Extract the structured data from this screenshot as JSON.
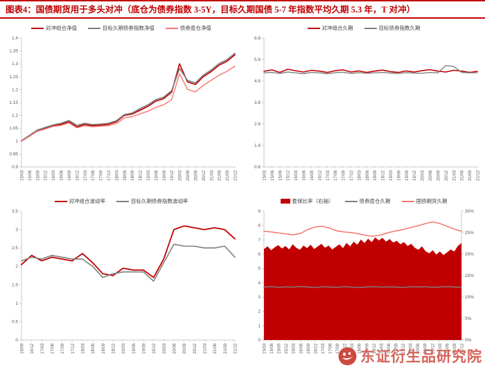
{
  "header": {
    "title": "图表4：国债期货用于多头对冲（底仓为债券指数 3-5Y，目标久期国债 5-7 年指数平均久期 5.3 年，T 对冲）",
    "accent_color": "#C00000"
  },
  "watermark": {
    "text": "东证衍生品研究院",
    "logo_color": "#CE4A3F"
  },
  "colors": {
    "main_red": "#C00000",
    "light_red": "#F4756F",
    "gray": "#7F7F7F",
    "axis": "#C9C9C9",
    "tick_text": "#595959"
  },
  "chart_data": [
    {
      "name": "net-value",
      "type": "line",
      "x_labels": [
        "15/03",
        "15/06",
        "15/09",
        "15/12",
        "16/03",
        "16/06",
        "16/09",
        "16/12",
        "17/03",
        "17/06",
        "17/09",
        "17/12",
        "18/03",
        "18/06",
        "18/09",
        "18/12",
        "19/03",
        "19/06",
        "19/09",
        "19/12",
        "20/03",
        "20/06",
        "20/09",
        "20/12",
        "21/03",
        "21/06",
        "21/09",
        "21/12"
      ],
      "ylim": [
        0.9,
        1.4
      ],
      "ytick_step": 0.05,
      "series": [
        {
          "name": "对冲组合净值",
          "color": "#C00000",
          "width": 1.7,
          "values": [
            1.0,
            1.02,
            1.04,
            1.05,
            1.06,
            1.065,
            1.075,
            1.055,
            1.065,
            1.06,
            1.062,
            1.065,
            1.075,
            1.1,
            1.105,
            1.12,
            1.135,
            1.155,
            1.165,
            1.19,
            1.3,
            1.23,
            1.22,
            1.25,
            1.27,
            1.295,
            1.31,
            1.335
          ]
        },
        {
          "name": "目标久期债券指数净值",
          "color": "#7F7F7F",
          "width": 1.7,
          "values": [
            1.002,
            1.022,
            1.043,
            1.053,
            1.063,
            1.069,
            1.08,
            1.061,
            1.069,
            1.064,
            1.066,
            1.069,
            1.079,
            1.103,
            1.109,
            1.126,
            1.141,
            1.161,
            1.171,
            1.196,
            1.282,
            1.236,
            1.226,
            1.256,
            1.276,
            1.301,
            1.316,
            1.341
          ]
        },
        {
          "name": "债券底仓净值",
          "color": "#F4756F",
          "width": 1.4,
          "values": [
            1.0,
            1.018,
            1.038,
            1.047,
            1.057,
            1.061,
            1.071,
            1.052,
            1.06,
            1.056,
            1.058,
            1.06,
            1.068,
            1.09,
            1.095,
            1.106,
            1.116,
            1.131,
            1.141,
            1.161,
            1.261,
            1.201,
            1.191,
            1.216,
            1.236,
            1.256,
            1.271,
            1.291
          ]
        }
      ]
    },
    {
      "name": "duration",
      "type": "line",
      "x_labels": [
        "15/03",
        "15/06",
        "15/09",
        "15/12",
        "16/03",
        "16/06",
        "16/09",
        "16/12",
        "17/03",
        "17/06",
        "17/09",
        "17/12",
        "18/03",
        "18/06",
        "18/09",
        "18/12",
        "19/03",
        "19/06",
        "19/09",
        "19/12",
        "20/03",
        "20/06",
        "20/09",
        "20/12",
        "21/03",
        "21/06",
        "21/09",
        "21/12"
      ],
      "ylim": [
        0.8,
        6.8
      ],
      "ytick_step": 1,
      "series": [
        {
          "name": "对冲组合久期",
          "color": "#C00000",
          "width": 1.6,
          "values": [
            5.25,
            5.32,
            5.2,
            5.35,
            5.28,
            5.22,
            5.3,
            5.26,
            5.2,
            5.28,
            5.32,
            5.22,
            5.27,
            5.2,
            5.26,
            5.31,
            5.24,
            5.2,
            5.27,
            5.22,
            5.28,
            5.33,
            5.26,
            5.22,
            5.3,
            5.26,
            5.2,
            5.25
          ]
        },
        {
          "name": "目标债券指数久期",
          "color": "#7F7F7F",
          "width": 1.4,
          "values": [
            5.18,
            5.2,
            5.15,
            5.22,
            5.18,
            5.14,
            5.2,
            5.18,
            5.14,
            5.19,
            5.21,
            5.15,
            5.19,
            5.16,
            5.18,
            5.2,
            5.17,
            5.15,
            5.19,
            5.17,
            5.16,
            5.2,
            5.18,
            5.52,
            5.48,
            5.2,
            5.18,
            5.19
          ]
        }
      ]
    },
    {
      "name": "volatility",
      "type": "line",
      "x_labels": [
        "16/09",
        "16/12",
        "17/03",
        "17/06",
        "17/09",
        "17/12",
        "18/03",
        "18/06",
        "18/09",
        "18/12",
        "19/03",
        "19/06",
        "19/09",
        "19/12",
        "20/03",
        "20/06",
        "20/09",
        "20/12",
        "21/03",
        "21/06",
        "21/09",
        "21/12"
      ],
      "ylim": [
        0,
        3.5
      ],
      "ytick_step": 0.5,
      "series": [
        {
          "name": "对冲组合波动率",
          "color": "#C00000",
          "width": 1.8,
          "values": [
            2.05,
            2.3,
            2.15,
            2.25,
            2.2,
            2.15,
            2.35,
            2.1,
            1.8,
            1.75,
            1.95,
            1.9,
            1.9,
            1.7,
            2.2,
            3.0,
            3.1,
            3.05,
            3.0,
            3.05,
            3.0,
            2.75
          ]
        },
        {
          "name": "目标久期债券指数波动率",
          "color": "#7F7F7F",
          "width": 1.6,
          "values": [
            2.15,
            2.25,
            2.2,
            2.3,
            2.25,
            2.2,
            2.2,
            2.0,
            1.7,
            1.8,
            1.85,
            1.85,
            1.85,
            1.6,
            2.1,
            2.6,
            2.55,
            2.55,
            2.5,
            2.5,
            2.55,
            2.25
          ]
        }
      ]
    },
    {
      "name": "hedge-ratio",
      "type": "mixed",
      "x_labels": [
        "15/03",
        "15/06",
        "15/09",
        "15/12",
        "16/03",
        "16/06",
        "16/09",
        "16/12",
        "17/03",
        "17/06",
        "17/09",
        "17/12",
        "18/03",
        "18/06",
        "18/09",
        "18/12",
        "19/03",
        "19/06",
        "19/09",
        "19/12",
        "20/03",
        "20/06",
        "20/09",
        "20/12",
        "21/03",
        "21/06",
        "21/09",
        "21/12"
      ],
      "ylim": [
        0,
        9
      ],
      "ytick_step": 1,
      "right_ylim": [
        0,
        30
      ],
      "right_ytick_step": 5,
      "right_suffix": "%",
      "series": [
        {
          "name": "套保比率（右轴）",
          "color": "#C00000",
          "type": "area",
          "axis": "right",
          "values": [
            21.2,
            21.8,
            20.9,
            21.6,
            22.1,
            21.3,
            21.9,
            21.1,
            22.3,
            21.5,
            21.0,
            22.0,
            21.4,
            22.2,
            21.2,
            21.8,
            22.4,
            21.5,
            22.0,
            21.1,
            21.7,
            22.3,
            21.4,
            22.6,
            21.8,
            22.9,
            22.2,
            23.4,
            22.6,
            23.6,
            22.8,
            23.9,
            23.2,
            23.8,
            22.9,
            23.5,
            22.7,
            23.1,
            22.3,
            22.8,
            21.9,
            22.4,
            21.5,
            21.0,
            21.8,
            20.7,
            20.2,
            20.9,
            19.9,
            20.6,
            19.8,
            20.4,
            21.1,
            20.6,
            21.9,
            22.6
          ]
        },
        {
          "name": "债券底仓久期",
          "color": "#7F7F7F",
          "width": 1.4,
          "values": [
            3.7,
            3.73,
            3.68,
            3.71,
            3.69,
            3.74,
            3.7,
            3.67,
            3.72,
            3.7,
            3.68,
            3.72,
            3.7,
            3.67,
            3.7,
            3.73,
            3.69,
            3.71,
            3.7,
            3.67,
            3.72,
            3.7,
            3.72,
            3.68,
            3.7,
            3.73,
            3.7,
            3.68
          ]
        },
        {
          "name": "国债期货久期",
          "color": "#F4756F",
          "width": 1.5,
          "values": [
            7.6,
            7.55,
            7.48,
            7.42,
            7.35,
            7.45,
            7.72,
            7.9,
            7.95,
            7.82,
            7.62,
            7.55,
            7.5,
            7.42,
            7.3,
            7.25,
            7.35,
            7.5,
            7.62,
            7.72,
            7.85,
            7.98,
            8.12,
            8.25,
            8.15,
            7.95,
            7.75,
            7.6
          ]
        }
      ]
    }
  ]
}
